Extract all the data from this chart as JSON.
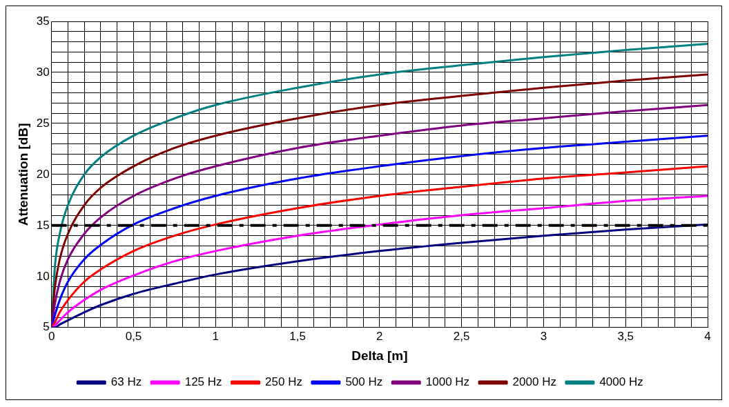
{
  "chart_data": {
    "type": "line",
    "xlabel": "Delta [m]",
    "ylabel": "Attenuation [dB]",
    "x": [
      0,
      0.02,
      0.05,
      0.1,
      0.2,
      0.3,
      0.5,
      0.75,
      1,
      1.5,
      2,
      2.5,
      3,
      3.5,
      4
    ],
    "series": [
      {
        "name": "63 Hz",
        "color": "#000080",
        "values": [
          5,
          5.0,
          5.3,
          5.7,
          6.5,
          7.2,
          8.3,
          9.3,
          10.2,
          11.5,
          12.5,
          13.3,
          14.0,
          14.6,
          15.1
        ]
      },
      {
        "name": "125 Hz",
        "color": "#ff00ff",
        "values": [
          5,
          5.2,
          5.7,
          6.5,
          7.7,
          8.7,
          10.1,
          11.5,
          12.5,
          14.0,
          15.1,
          16.0,
          16.7,
          17.4,
          17.9
        ]
      },
      {
        "name": "250 Hz",
        "color": "#ff0000",
        "values": [
          5,
          5.5,
          6.5,
          7.7,
          9.5,
          10.7,
          12.5,
          14.0,
          15.1,
          16.7,
          17.9,
          18.8,
          19.6,
          20.2,
          20.8
        ]
      },
      {
        "name": "500 Hz",
        "color": "#0000ff",
        "values": [
          5,
          6.2,
          7.7,
          9.5,
          11.7,
          13.1,
          15.1,
          16.7,
          17.9,
          19.6,
          20.8,
          21.8,
          22.6,
          23.2,
          23.8
        ]
      },
      {
        "name": "1000 Hz",
        "color": "#800080",
        "values": [
          5,
          7.3,
          9.5,
          11.7,
          14.2,
          15.8,
          17.9,
          19.6,
          20.8,
          22.6,
          23.8,
          24.8,
          25.5,
          26.2,
          26.8
        ]
      },
      {
        "name": "2000 Hz",
        "color": "#800000",
        "values": [
          5,
          8.9,
          11.7,
          14.2,
          17.0,
          18.7,
          20.8,
          22.6,
          23.8,
          25.5,
          26.8,
          27.7,
          28.5,
          29.2,
          29.8
        ]
      },
      {
        "name": "4000 Hz",
        "color": "#008080",
        "values": [
          5,
          10.9,
          14.2,
          17.0,
          20.0,
          21.7,
          23.8,
          25.5,
          26.8,
          28.5,
          29.8,
          30.7,
          31.5,
          32.2,
          32.8
        ]
      }
    ],
    "xlim": [
      0,
      4
    ],
    "xticks": [
      0,
      {
        "value": 0.1,
        "label": null
      },
      {
        "value": 0.2,
        "label": null
      },
      {
        "value": 0.3,
        "label": null
      },
      {
        "value": 0.4,
        "label": null
      },
      {
        "value": 0.5,
        "label": "0,5"
      },
      {
        "value": 0.6,
        "label": null
      },
      {
        "value": 0.7,
        "label": null
      },
      {
        "value": 0.8,
        "label": null
      },
      {
        "value": 0.9,
        "label": null
      },
      1,
      {
        "value": 1.1,
        "label": null
      },
      {
        "value": 1.2,
        "label": null
      },
      {
        "value": 1.3,
        "label": null
      },
      {
        "value": 1.4,
        "label": null
      },
      {
        "value": 1.5,
        "label": "1,5"
      },
      {
        "value": 1.6,
        "label": null
      },
      {
        "value": 1.7,
        "label": null
      },
      {
        "value": 1.8,
        "label": null
      },
      {
        "value": 1.9,
        "label": null
      },
      2,
      {
        "value": 2.1,
        "label": null
      },
      {
        "value": 2.2,
        "label": null
      },
      {
        "value": 2.3,
        "label": null
      },
      {
        "value": 2.4,
        "label": null
      },
      {
        "value": 2.5,
        "label": "2,5"
      },
      {
        "value": 2.6,
        "label": null
      },
      {
        "value": 2.7,
        "label": null
      },
      {
        "value": 2.8,
        "label": null
      },
      {
        "value": 2.9,
        "label": null
      },
      3,
      {
        "value": 3.1,
        "label": null
      },
      {
        "value": 3.2,
        "label": null
      },
      {
        "value": 3.3,
        "label": null
      },
      {
        "value": 3.4,
        "label": null
      },
      {
        "value": 3.5,
        "label": "3,5"
      },
      {
        "value": 3.6,
        "label": null
      },
      {
        "value": 3.7,
        "label": null
      },
      {
        "value": 3.8,
        "label": null
      },
      {
        "value": 3.9,
        "label": null
      },
      4
    ],
    "ylim": [
      5,
      35
    ],
    "yticks": [
      5,
      {
        "value": 6,
        "label": null
      },
      {
        "value": 7,
        "label": null
      },
      {
        "value": 8,
        "label": null
      },
      {
        "value": 9,
        "label": null
      },
      10,
      {
        "value": 11,
        "label": null
      },
      {
        "value": 12,
        "label": null
      },
      {
        "value": 13,
        "label": null
      },
      {
        "value": 14,
        "label": null
      },
      15,
      {
        "value": 16,
        "label": null
      },
      {
        "value": 17,
        "label": null
      },
      {
        "value": 18,
        "label": null
      },
      {
        "value": 19,
        "label": null
      },
      20,
      {
        "value": 21,
        "label": null
      },
      {
        "value": 22,
        "label": null
      },
      {
        "value": 23,
        "label": null
      },
      {
        "value": 24,
        "label": null
      },
      25,
      {
        "value": 26,
        "label": null
      },
      {
        "value": 27,
        "label": null
      },
      {
        "value": 28,
        "label": null
      },
      {
        "value": 29,
        "label": null
      },
      30,
      {
        "value": 31,
        "label": null
      },
      {
        "value": 32,
        "label": null
      },
      {
        "value": 33,
        "label": null
      },
      {
        "value": 34,
        "label": null
      },
      35
    ],
    "ref_lines": [
      {
        "axis": "y",
        "value": 15,
        "label": null,
        "color": "#000000",
        "line_style": "dashdot"
      }
    ],
    "grid": true,
    "legend": "bottom",
    "marker": "none",
    "line_style": "solid"
  }
}
